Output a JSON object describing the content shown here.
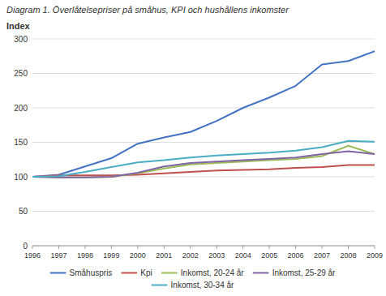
{
  "chart_data": {
    "type": "line",
    "title": "Diagram 1. Överlåtelsepriser på småhus, KPI och hushållens inkomster",
    "ylabel": "Index",
    "x": [
      1996,
      1997,
      1998,
      1999,
      2000,
      2001,
      2002,
      2003,
      2004,
      2005,
      2006,
      2007,
      2008,
      2009
    ],
    "xlim": [
      1996,
      2009
    ],
    "xticks": [
      1996,
      1997,
      1998,
      1999,
      2000,
      2001,
      2002,
      2003,
      2004,
      2005,
      2006,
      2007,
      2008,
      2009
    ],
    "ylim": [
      0,
      300
    ],
    "yticks": [
      0,
      50,
      100,
      150,
      200,
      250,
      300
    ],
    "grid": true,
    "legend": "bottom",
    "series": [
      {
        "name": "Småhuspris",
        "color": "#4472C4",
        "values": [
          100,
          103,
          115,
          127,
          148,
          157,
          165,
          181,
          200,
          215,
          232,
          263,
          268,
          282
        ]
      },
      {
        "name": "Kpi",
        "color": "#C0504D",
        "values": [
          100,
          102,
          102,
          102,
          103,
          105,
          107,
          109,
          110,
          111,
          113,
          114,
          117,
          117
        ]
      },
      {
        "name": "Inkomst, 20-24 år",
        "color": "#9BBB59",
        "values": [
          100,
          99,
          99,
          100,
          105,
          112,
          118,
          120,
          122,
          124,
          126,
          130,
          145,
          133
        ]
      },
      {
        "name": "Inkomst, 25-29 år",
        "color": "#8064A2",
        "values": [
          100,
          99,
          99,
          100,
          106,
          115,
          120,
          122,
          124,
          126,
          128,
          133,
          137,
          133
        ]
      },
      {
        "name": "Inkomst, 30-34 år",
        "color": "#4BACC6",
        "values": [
          100,
          101,
          107,
          114,
          121,
          124,
          128,
          131,
          133,
          135,
          138,
          143,
          152,
          151
        ]
      }
    ]
  }
}
